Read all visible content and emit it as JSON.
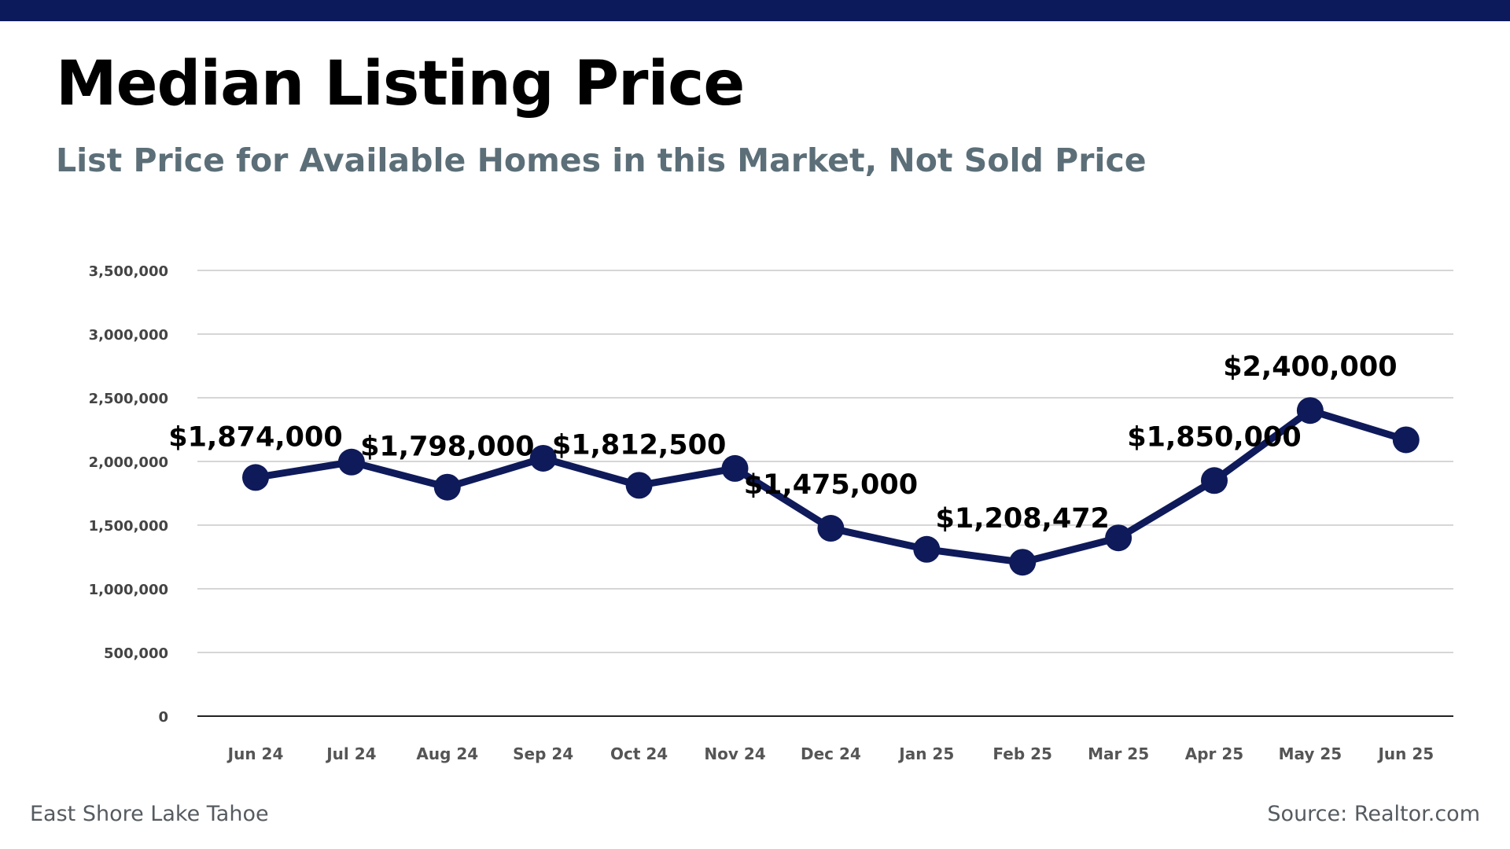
{
  "header": {
    "title": "Median Listing Price",
    "subtitle": "List Price for Available Homes in this Market, Not Sold Price"
  },
  "footer": {
    "location": "East Shore Lake Tahoe",
    "source": "Source: Realtor.com"
  },
  "colors": {
    "top_bar": "#0c1a5c",
    "line": "#0e1a5a",
    "subtitle": "#5c6f78",
    "grid": "#c8c8c8",
    "axis": "#222222",
    "tick_text": "#555555"
  },
  "chart_data": {
    "type": "line",
    "title": "Median Listing Price",
    "subtitle": "List Price for Available Homes in this Market, Not Sold Price",
    "xlabel": "",
    "ylabel": "",
    "categories": [
      "Jun 24",
      "Jul 24",
      "Aug 24",
      "Sep 24",
      "Oct 24",
      "Nov 24",
      "Dec 24",
      "Jan 25",
      "Feb 25",
      "Mar 25",
      "Apr 25",
      "May 25",
      "Jun 25"
    ],
    "series": [
      {
        "values": [
          1874000,
          1995000,
          1798000,
          2025000,
          1812500,
          1945000,
          1475000,
          1310000,
          1208472,
          1400000,
          1850000,
          2400000,
          2170000
        ]
      }
    ],
    "data_labels": [
      {
        "index": 0,
        "text": "$1,874,000"
      },
      {
        "index": 2,
        "text": "$1,798,000"
      },
      {
        "index": 4,
        "text": "$1,812,500"
      },
      {
        "index": 6,
        "text": "$1,475,000"
      },
      {
        "index": 8,
        "text": "$1,208,472"
      },
      {
        "index": 10,
        "text": "$1,850,000"
      },
      {
        "index": 11,
        "text": "$2,400,000"
      }
    ],
    "y_ticks": [
      0,
      500000,
      1000000,
      1500000,
      2000000,
      2500000,
      3000000,
      3500000
    ],
    "y_tick_labels": [
      "0",
      "500,000",
      "1,000,000",
      "1,500,000",
      "2,000,000",
      "2,500,000",
      "3,000,000",
      "3,500,000"
    ],
    "ylim": [
      0,
      3500000
    ],
    "grid": true,
    "legend": "none"
  }
}
